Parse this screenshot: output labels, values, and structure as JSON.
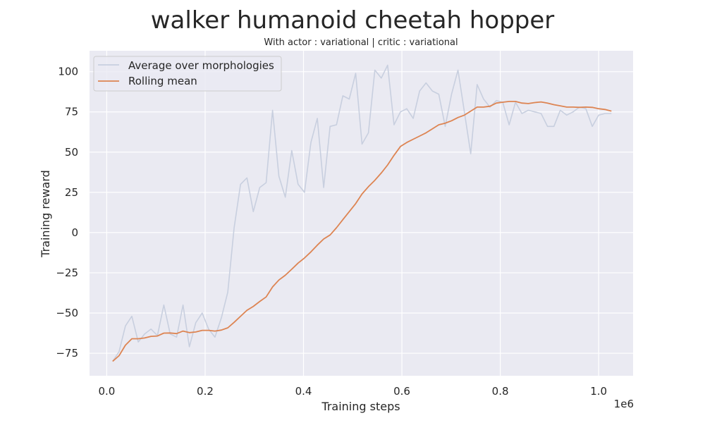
{
  "chart_data": {
    "type": "line",
    "title": "walker humanoid cheetah hopper",
    "subtitle": "With actor : variational | critic : variational",
    "xlabel": "Training steps",
    "ylabel": "Training reward",
    "x_offset_label": "1e6",
    "xlim": [
      -0.035,
      1.07
    ],
    "ylim": [
      -89,
      113
    ],
    "x_ticks": [
      0.0,
      0.2,
      0.4,
      0.6,
      0.8,
      1.0
    ],
    "x_tick_labels": [
      "0.0",
      "0.2",
      "0.4",
      "0.6",
      "0.8",
      "1.0"
    ],
    "y_ticks": [
      -75,
      -50,
      -25,
      0,
      25,
      50,
      75,
      100
    ],
    "y_tick_labels": [
      "−75",
      "−50",
      "−25",
      "0",
      "25",
      "50",
      "75",
      "100"
    ],
    "grid": true,
    "legend_position": "top-left",
    "colors": {
      "background": "#eaeaf2",
      "grid": "#ffffff",
      "average": "#c8cfdf",
      "rolling": "#dd8452"
    },
    "series": [
      {
        "name": "Average over morphologies",
        "x": [
          0.012,
          0.025,
          0.038,
          0.051,
          0.064,
          0.077,
          0.09,
          0.103,
          0.116,
          0.129,
          0.142,
          0.155,
          0.168,
          0.181,
          0.194,
          0.207,
          0.22,
          0.233,
          0.246,
          0.259,
          0.272,
          0.285,
          0.298,
          0.311,
          0.324,
          0.337,
          0.35,
          0.363,
          0.376,
          0.389,
          0.402,
          0.415,
          0.428,
          0.441,
          0.454,
          0.467,
          0.48,
          0.493,
          0.506,
          0.519,
          0.532,
          0.545,
          0.558,
          0.571,
          0.584,
          0.597,
          0.61,
          0.623,
          0.636,
          0.649,
          0.662,
          0.675,
          0.688,
          0.701,
          0.714,
          0.727,
          0.74,
          0.753,
          0.766,
          0.779,
          0.792,
          0.805,
          0.818,
          0.831,
          0.844,
          0.857,
          0.87,
          0.883,
          0.896,
          0.909,
          0.922,
          0.935,
          0.948,
          0.961,
          0.974,
          0.987,
          1.0,
          1.013,
          1.026
        ],
        "y": [
          -80,
          -74,
          -58,
          -52,
          -68,
          -63,
          -60,
          -64,
          -45,
          -63,
          -65,
          -45,
          -71,
          -56,
          -50,
          -60,
          -65,
          -53,
          -37,
          3,
          30,
          34,
          13,
          28,
          31,
          76,
          35,
          22,
          51,
          30,
          25,
          56,
          71,
          28,
          66,
          67,
          85,
          83,
          99,
          55,
          62,
          101,
          96,
          104,
          67,
          75,
          77,
          71,
          88,
          93,
          88,
          86,
          66,
          86,
          101,
          75,
          49,
          92,
          83,
          78,
          82,
          81,
          67,
          81,
          74,
          76,
          75,
          74,
          66,
          66,
          76,
          73,
          75,
          78,
          77,
          66,
          73,
          74,
          74
        ]
      },
      {
        "name": "Rolling mean",
        "x": [
          0.012,
          0.025,
          0.038,
          0.051,
          0.064,
          0.077,
          0.09,
          0.103,
          0.116,
          0.129,
          0.142,
          0.155,
          0.168,
          0.181,
          0.194,
          0.207,
          0.22,
          0.233,
          0.246,
          0.259,
          0.272,
          0.285,
          0.298,
          0.311,
          0.324,
          0.337,
          0.35,
          0.363,
          0.376,
          0.389,
          0.402,
          0.415,
          0.428,
          0.441,
          0.454,
          0.467,
          0.48,
          0.493,
          0.506,
          0.519,
          0.532,
          0.545,
          0.558,
          0.571,
          0.584,
          0.597,
          0.61,
          0.623,
          0.636,
          0.649,
          0.662,
          0.675,
          0.688,
          0.701,
          0.714,
          0.727,
          0.74,
          0.753,
          0.766,
          0.779,
          0.792,
          0.805,
          0.818,
          0.831,
          0.844,
          0.857,
          0.87,
          0.883,
          0.896,
          0.909,
          0.922,
          0.935,
          0.948,
          0.961,
          0.974,
          0.987,
          1.0,
          1.013,
          1.026
        ],
        "y": [
          -80,
          -76.5,
          -70,
          -66,
          -66,
          -65.5,
          -64.5,
          -64.3,
          -62.5,
          -62.4,
          -62.8,
          -61.2,
          -62.2,
          -61.8,
          -60.8,
          -60.8,
          -61.2,
          -60.6,
          -59.2,
          -55.8,
          -52,
          -48.3,
          -45.9,
          -42.8,
          -40,
          -33.8,
          -29.5,
          -26.5,
          -22.8,
          -19,
          -15.8,
          -12,
          -7.8,
          -4,
          -1.5,
          3,
          8,
          13,
          18,
          24,
          28.5,
          32.5,
          37,
          42,
          48,
          53.5,
          56,
          58,
          60,
          62,
          64.5,
          67,
          68,
          69.5,
          71.5,
          73,
          75.5,
          78,
          78,
          78.5,
          80.5,
          81,
          81.5,
          81.5,
          80.5,
          80.2,
          80.8,
          81.2,
          80.5,
          79.5,
          78.8,
          78,
          78,
          77.8,
          78,
          77.8,
          77,
          76.5,
          75.5
        ]
      }
    ]
  }
}
